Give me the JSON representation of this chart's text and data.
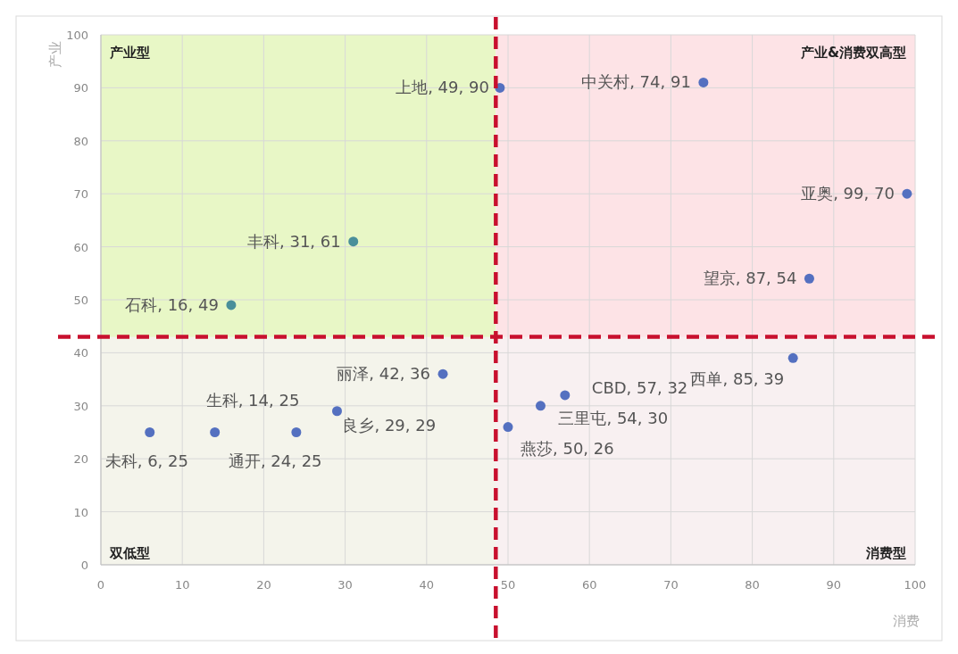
{
  "chart_data": {
    "type": "scatter",
    "xlabel": "消费",
    "ylabel": "产业",
    "x": [
      49,
      74,
      99,
      31,
      87,
      16,
      42,
      85,
      14,
      57,
      54,
      29,
      6,
      24,
      50
    ],
    "values": [
      90,
      91,
      70,
      61,
      54,
      49,
      36,
      39,
      25,
      32,
      30,
      29,
      25,
      25,
      26
    ],
    "value_labels": [
      "上地, 49, 90",
      "中关村, 74, 91",
      "亚奥, 99, 70",
      "丰科, 31, 61",
      "望京, 87, 54",
      "石科, 16, 49",
      "丽泽, 42, 36",
      "西单, 85, 39",
      "生科, 14, 25",
      "CBD, 57, 32",
      "三里屯, 54, 30",
      "良乡, 29, 29",
      "未科, 6, 25",
      "通开, 24, 25",
      "燕莎, 50, 26"
    ],
    "colors": [
      "#5470c0",
      "#5470c0",
      "#5470c0",
      "#4a8f9a",
      "#5470c0",
      "#4a8f9a",
      "#5470c0",
      "#5470c0",
      "#5470c0",
      "#5470c0",
      "#5470c0",
      "#5470c0",
      "#5470c0",
      "#5470c0",
      "#5470c0"
    ],
    "marker": "circle",
    "grid": true,
    "xlim": [
      0,
      100
    ],
    "ylim": [
      0,
      100
    ],
    "xticks": [
      0,
      10,
      20,
      30,
      40,
      50,
      60,
      70,
      80,
      90,
      100
    ],
    "yticks": [
      0,
      10,
      20,
      30,
      40,
      50,
      60,
      70,
      80,
      90,
      100
    ],
    "bands": [
      {
        "axis": "x",
        "from": 0,
        "to": 48.5,
        "color": "#e8f7c6"
      },
      {
        "axis": "x",
        "from": 48.5,
        "to": 100,
        "color": "#fde3e6"
      },
      {
        "axis": "y",
        "from": 0,
        "to": 43,
        "color": "#f6f2f4"
      }
    ],
    "ref_lines": [
      {
        "axis": "x",
        "value": 48.5,
        "color": "#c8102e",
        "line_style": "dashed"
      },
      {
        "axis": "y",
        "value": 43,
        "color": "#c8102e",
        "line_style": "dashed"
      }
    ],
    "annotations": [
      "产业型",
      "产业&消费双高型",
      "双低型",
      "消费型"
    ]
  }
}
